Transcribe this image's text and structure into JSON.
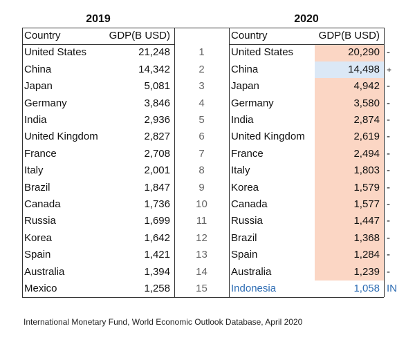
{
  "tables": [
    {
      "title": "2019",
      "header": [
        "Country",
        "GDP(B USD)"
      ],
      "rows": [
        [
          "United States",
          "21,248"
        ],
        [
          "China",
          "14,342"
        ],
        [
          "Japan",
          "5,081"
        ],
        [
          "Germany",
          "3,846"
        ],
        [
          "India",
          "2,936"
        ],
        [
          "United Kingdom",
          "2,827"
        ],
        [
          "France",
          "2,708"
        ],
        [
          "Italy",
          "2,001"
        ],
        [
          "Brazil",
          "1,847"
        ],
        [
          "Canada",
          "1,736"
        ],
        [
          "Russia",
          "1,699"
        ],
        [
          "Korea",
          "1,642"
        ],
        [
          "Spain",
          "1,421"
        ],
        [
          "Australia",
          "1,394"
        ],
        [
          "Mexico",
          "1,258"
        ]
      ]
    },
    {
      "title": "2020",
      "header": [
        "Country",
        "GDP(B USD)"
      ],
      "rows": [
        [
          "United States",
          "20,290",
          "-"
        ],
        [
          "China",
          "14,498",
          "+"
        ],
        [
          "Japan",
          "4,942",
          "-"
        ],
        [
          "Germany",
          "3,580",
          "-"
        ],
        [
          "India",
          "2,874",
          "-"
        ],
        [
          "United Kingdom",
          "2,619",
          "-"
        ],
        [
          "France",
          "2,494",
          "-"
        ],
        [
          "Italy",
          "1,803",
          "-"
        ],
        [
          "Korea",
          "1,579",
          "-"
        ],
        [
          "Canada",
          "1,577",
          "-"
        ],
        [
          "Russia",
          "1,447",
          "-"
        ],
        [
          "Brazil",
          "1,368",
          "-"
        ],
        [
          "Spain",
          "1,284",
          "-"
        ],
        [
          "Australia",
          "1,239",
          "-"
        ],
        [
          "Indonesia",
          "1,058",
          "IN"
        ]
      ]
    }
  ],
  "ranks": [
    "1",
    "2",
    "3",
    "4",
    "5",
    "6",
    "7",
    "8",
    "9",
    "10",
    "11",
    "12",
    "13",
    "14",
    "15"
  ],
  "footnote": "International Monetary Fund, World Economic Outlook Database, April 2020"
}
